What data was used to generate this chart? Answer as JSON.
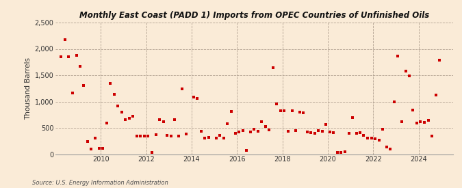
{
  "title": "Monthly East Coast (PADD 1) Imports from OPEC Countries of Unfinished Oils",
  "ylabel": "Thousand Barrels",
  "source": "Source: U.S. Energy Information Administration",
  "background_color": "#faebd7",
  "marker_color": "#cc0000",
  "ylim": [
    0,
    2500
  ],
  "yticks": [
    0,
    500,
    1000,
    1500,
    2000,
    2500
  ],
  "ytick_labels": [
    "0",
    "500",
    "1,000",
    "1,500",
    "2,000",
    "2,500"
  ],
  "xticks": [
    2010,
    2012,
    2014,
    2016,
    2018,
    2020,
    2022,
    2024
  ],
  "xlim": [
    2008.0,
    2025.5
  ],
  "data": [
    [
      2008.25,
      1850
    ],
    [
      2008.42,
      2180
    ],
    [
      2008.58,
      1850
    ],
    [
      2008.75,
      1160
    ],
    [
      2008.92,
      1880
    ],
    [
      2009.08,
      1670
    ],
    [
      2009.25,
      1300
    ],
    [
      2009.42,
      240
    ],
    [
      2009.58,
      100
    ],
    [
      2009.75,
      300
    ],
    [
      2009.92,
      110
    ],
    [
      2010.08,
      110
    ],
    [
      2010.25,
      590
    ],
    [
      2010.42,
      1350
    ],
    [
      2010.58,
      1140
    ],
    [
      2010.75,
      920
    ],
    [
      2010.92,
      800
    ],
    [
      2011.08,
      650
    ],
    [
      2011.25,
      680
    ],
    [
      2011.42,
      720
    ],
    [
      2011.58,
      350
    ],
    [
      2011.75,
      340
    ],
    [
      2011.92,
      350
    ],
    [
      2012.08,
      340
    ],
    [
      2012.25,
      30
    ],
    [
      2012.42,
      370
    ],
    [
      2012.58,
      650
    ],
    [
      2012.75,
      620
    ],
    [
      2012.92,
      360
    ],
    [
      2013.08,
      350
    ],
    [
      2013.25,
      660
    ],
    [
      2013.42,
      340
    ],
    [
      2013.58,
      1240
    ],
    [
      2013.75,
      380
    ],
    [
      2014.08,
      1090
    ],
    [
      2014.25,
      1060
    ],
    [
      2014.42,
      440
    ],
    [
      2014.58,
      310
    ],
    [
      2014.75,
      320
    ],
    [
      2015.08,
      300
    ],
    [
      2015.25,
      360
    ],
    [
      2015.42,
      310
    ],
    [
      2015.58,
      580
    ],
    [
      2015.75,
      810
    ],
    [
      2015.92,
      400
    ],
    [
      2016.08,
      420
    ],
    [
      2016.25,
      450
    ],
    [
      2016.42,
      70
    ],
    [
      2016.58,
      420
    ],
    [
      2016.75,
      480
    ],
    [
      2016.92,
      440
    ],
    [
      2017.08,
      620
    ],
    [
      2017.25,
      530
    ],
    [
      2017.42,
      460
    ],
    [
      2017.58,
      1640
    ],
    [
      2017.75,
      960
    ],
    [
      2017.92,
      820
    ],
    [
      2018.08,
      820
    ],
    [
      2018.25,
      430
    ],
    [
      2018.42,
      830
    ],
    [
      2018.58,
      450
    ],
    [
      2018.75,
      800
    ],
    [
      2018.92,
      790
    ],
    [
      2019.08,
      420
    ],
    [
      2019.25,
      410
    ],
    [
      2019.42,
      400
    ],
    [
      2019.58,
      450
    ],
    [
      2019.75,
      430
    ],
    [
      2019.92,
      570
    ],
    [
      2020.08,
      420
    ],
    [
      2020.25,
      410
    ],
    [
      2020.42,
      30
    ],
    [
      2020.58,
      30
    ],
    [
      2020.75,
      50
    ],
    [
      2020.92,
      400
    ],
    [
      2021.08,
      690
    ],
    [
      2021.25,
      400
    ],
    [
      2021.42,
      410
    ],
    [
      2021.58,
      360
    ],
    [
      2021.75,
      310
    ],
    [
      2021.92,
      300
    ],
    [
      2022.08,
      290
    ],
    [
      2022.25,
      260
    ],
    [
      2022.42,
      480
    ],
    [
      2022.58,
      140
    ],
    [
      2022.75,
      100
    ],
    [
      2022.92,
      1000
    ],
    [
      2023.08,
      1860
    ],
    [
      2023.25,
      620
    ],
    [
      2023.42,
      1580
    ],
    [
      2023.58,
      1490
    ],
    [
      2023.75,
      840
    ],
    [
      2023.92,
      590
    ],
    [
      2024.08,
      620
    ],
    [
      2024.25,
      610
    ],
    [
      2024.42,
      640
    ],
    [
      2024.58,
      350
    ],
    [
      2024.75,
      1120
    ],
    [
      2024.92,
      1790
    ]
  ]
}
